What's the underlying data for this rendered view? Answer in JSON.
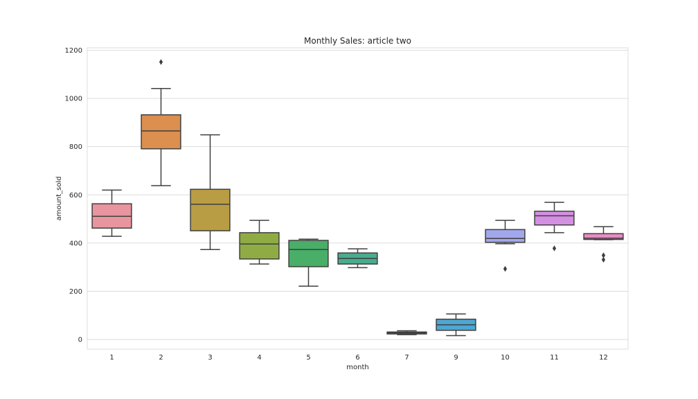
{
  "chart_data": {
    "type": "box",
    "title": "Monthly Sales: article two",
    "xlabel": "month",
    "ylabel": "amount_sold",
    "ylim": [
      -40,
      1210
    ],
    "yticks": [
      0,
      200,
      400,
      600,
      800,
      1000,
      1200
    ],
    "grid": true,
    "categories": [
      "1",
      "2",
      "3",
      "4",
      "5",
      "6",
      "7",
      "9",
      "10",
      "11",
      "12"
    ],
    "boxes": [
      {
        "category": "1",
        "color": "#e8959f",
        "whisker_low": 428,
        "q1": 462,
        "median": 511,
        "q3": 563,
        "whisker_high": 620,
        "fliers": []
      },
      {
        "category": "2",
        "color": "#dc8f4e",
        "whisker_low": 638,
        "q1": 791,
        "median": 865,
        "q3": 932,
        "whisker_high": 1041,
        "fliers": [
          1151
        ]
      },
      {
        "category": "3",
        "color": "#b99d44",
        "whisker_low": 373,
        "q1": 451,
        "median": 561,
        "q3": 623,
        "whisker_high": 849,
        "fliers": []
      },
      {
        "category": "4",
        "color": "#8fac44",
        "whisker_low": 313,
        "q1": 334,
        "median": 396,
        "q3": 443,
        "whisker_high": 494,
        "fliers": []
      },
      {
        "category": "5",
        "color": "#49ae67",
        "whisker_low": 221,
        "q1": 302,
        "median": 373,
        "q3": 411,
        "whisker_high": 416,
        "fliers": []
      },
      {
        "category": "6",
        "color": "#4aab8e",
        "whisker_low": 298,
        "q1": 313,
        "median": 336,
        "q3": 359,
        "whisker_high": 376,
        "fliers": []
      },
      {
        "category": "7",
        "color": "#4aa8a0",
        "whisker_low": 20,
        "q1": 23,
        "median": 27,
        "q3": 31,
        "whisker_high": 36,
        "fliers": []
      },
      {
        "category": "9",
        "color": "#4da7d3",
        "whisker_low": 16,
        "q1": 38,
        "median": 61,
        "q3": 84,
        "whisker_high": 106,
        "fliers": []
      },
      {
        "category": "10",
        "color": "#a3a7ec",
        "whisker_low": 397,
        "q1": 403,
        "median": 419,
        "q3": 456,
        "whisker_high": 494,
        "fliers": [
          293
        ]
      },
      {
        "category": "11",
        "color": "#d48fe2",
        "whisker_low": 443,
        "q1": 475,
        "median": 513,
        "q3": 532,
        "whisker_high": 569,
        "fliers": [
          378
        ]
      },
      {
        "category": "12",
        "color": "#e68dc4",
        "whisker_low": 414,
        "q1": 415,
        "median": 420,
        "q3": 439,
        "whisker_high": 468,
        "fliers": [
          349,
          331
        ]
      }
    ]
  }
}
